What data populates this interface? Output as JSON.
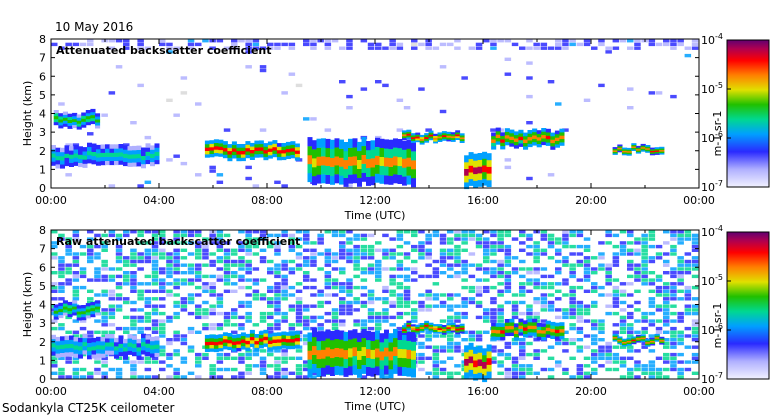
{
  "header": {
    "date": "10 May 2016"
  },
  "footer": {
    "instrument": "Sodankyla CT25K ceilometer"
  },
  "chart_data": [
    {
      "type": "heatmap",
      "title": "Attenuated backscatter coefficient",
      "xlabel": "Time (UTC)",
      "ylabel": "Height (km)",
      "xlim": [
        0,
        24
      ],
      "ylim": [
        0,
        8
      ],
      "x_ticks": [
        0,
        2,
        4,
        6,
        8,
        10,
        12,
        14,
        16,
        18,
        20,
        22,
        24
      ],
      "x_tick_labels": [
        "00:00",
        "04:00",
        "08:00",
        "12:00",
        "16:00",
        "20:00",
        "00:00"
      ],
      "y_ticks": [
        0,
        1,
        2,
        3,
        4,
        5,
        6,
        7,
        8
      ],
      "y_tick_labels": [
        "0",
        "1",
        "2",
        "3",
        "4",
        "5",
        "6",
        "7",
        "8"
      ],
      "colorbar": {
        "label": "m-1 sr-1",
        "scale": "log",
        "range": [
          1e-07,
          0.0001
        ],
        "tick_labels": [
          "10-4",
          "10-5",
          "10-6",
          "10-7"
        ]
      },
      "layers": [
        {
          "t0": 0.1,
          "t1": 1.8,
          "h0": 3.3,
          "h1": 4.1,
          "level": 0.55
        },
        {
          "t0": 0.0,
          "t1": 4.0,
          "h0": 1.2,
          "h1": 2.3,
          "level": 0.45
        },
        {
          "t0": 5.7,
          "t1": 9.2,
          "h0": 1.6,
          "h1": 2.5,
          "level": 0.9
        },
        {
          "t0": 9.5,
          "t1": 13.5,
          "h0": 0.2,
          "h1": 2.6,
          "level": 0.75
        },
        {
          "t0": 13.0,
          "t1": 15.3,
          "h0": 2.5,
          "h1": 3.0,
          "level": 0.85
        },
        {
          "t0": 15.3,
          "t1": 16.3,
          "h0": 0.0,
          "h1": 1.8,
          "level": 0.95
        },
        {
          "t0": 16.3,
          "t1": 19.0,
          "h0": 2.2,
          "h1": 3.1,
          "level": 0.8
        },
        {
          "t0": 20.8,
          "t1": 22.7,
          "h0": 1.9,
          "h1": 2.3,
          "level": 0.8
        }
      ]
    },
    {
      "type": "heatmap",
      "title": "Raw attenuated backscatter coefficient",
      "xlabel": "Time (UTC)",
      "ylabel": "Height (km)",
      "xlim": [
        0,
        24
      ],
      "ylim": [
        0,
        8
      ],
      "x_ticks": [
        0,
        2,
        4,
        6,
        8,
        10,
        12,
        14,
        16,
        18,
        20,
        22,
        24
      ],
      "x_tick_labels": [
        "00:00",
        "04:00",
        "08:00",
        "12:00",
        "16:00",
        "20:00",
        "00:00"
      ],
      "y_ticks": [
        0,
        1,
        2,
        3,
        4,
        5,
        6,
        7,
        8
      ],
      "y_tick_labels": [
        "0",
        "1",
        "2",
        "3",
        "4",
        "5",
        "6",
        "7",
        "8"
      ],
      "colorbar": {
        "label": "m-1 sr-1",
        "scale": "log",
        "range": [
          1e-07,
          0.0001
        ],
        "tick_labels": [
          "10-4",
          "10-5",
          "10-6",
          "10-7"
        ]
      },
      "layers": [
        {
          "t0": 0.1,
          "t1": 1.8,
          "h0": 3.3,
          "h1": 4.1,
          "level": 0.55
        },
        {
          "t0": 0.0,
          "t1": 4.0,
          "h0": 1.2,
          "h1": 2.3,
          "level": 0.45
        },
        {
          "t0": 5.7,
          "t1": 9.2,
          "h0": 1.6,
          "h1": 2.5,
          "level": 0.9
        },
        {
          "t0": 9.5,
          "t1": 13.5,
          "h0": 0.2,
          "h1": 2.6,
          "level": 0.75
        },
        {
          "t0": 13.0,
          "t1": 15.3,
          "h0": 2.5,
          "h1": 3.0,
          "level": 0.85
        },
        {
          "t0": 15.3,
          "t1": 16.3,
          "h0": 0.0,
          "h1": 1.8,
          "level": 0.95
        },
        {
          "t0": 16.3,
          "t1": 19.0,
          "h0": 2.2,
          "h1": 3.1,
          "level": 0.8
        },
        {
          "t0": 20.8,
          "t1": 22.7,
          "h0": 1.9,
          "h1": 2.3,
          "level": 0.8
        }
      ]
    }
  ]
}
